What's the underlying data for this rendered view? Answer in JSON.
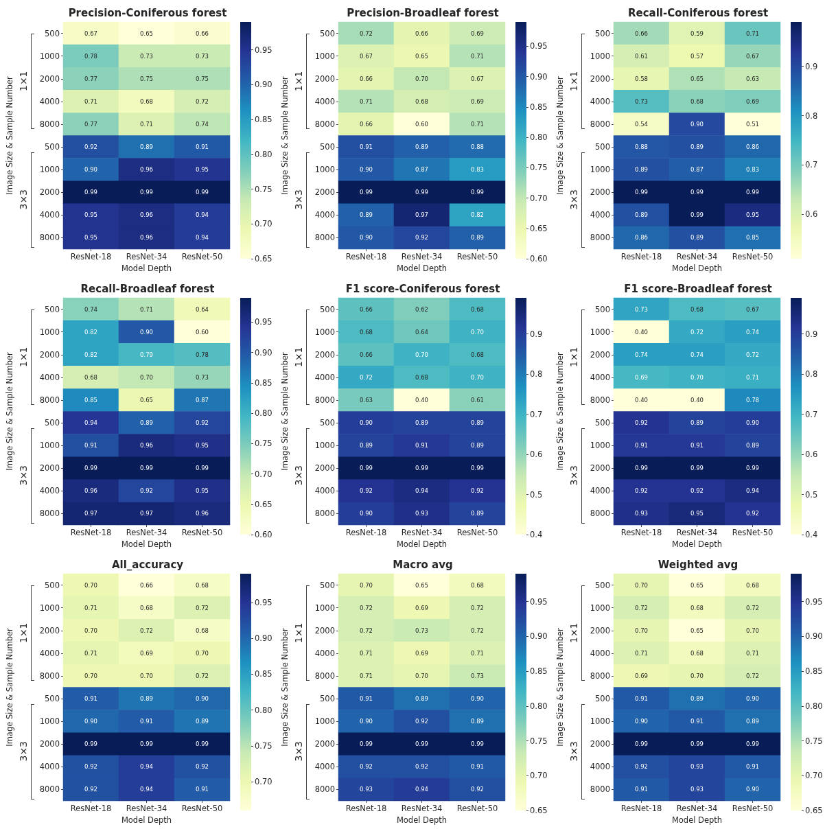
{
  "chart_data": [
    {
      "type": "heatmap",
      "title": "Precision-Coniferous forest",
      "xlabel": "Model Depth",
      "ylabel": "Image Size & Sample Number",
      "annotations": [
        "1×1",
        "3×3"
      ],
      "categories": [
        "ResNet-18",
        "ResNet-34",
        "ResNet-50"
      ],
      "y_categories": [
        "500",
        "1000",
        "2000",
        "4000",
        "8000",
        "500",
        "1000",
        "2000",
        "4000",
        "8000"
      ],
      "cells": [
        [
          0.67,
          0.65,
          0.66
        ],
        [
          0.78,
          0.73,
          0.73
        ],
        [
          0.77,
          0.75,
          0.75
        ],
        [
          0.71,
          0.68,
          0.72
        ],
        [
          0.77,
          0.71,
          0.74
        ],
        [
          0.92,
          0.89,
          0.91
        ],
        [
          0.9,
          0.96,
          0.95
        ],
        [
          0.99,
          0.99,
          0.99
        ],
        [
          0.95,
          0.96,
          0.94
        ],
        [
          0.95,
          0.96,
          0.94
        ]
      ],
      "cell_labels": [
        [
          "0.67",
          "0.65",
          "0.66"
        ],
        [
          "0.78",
          "0.73",
          "0.73"
        ],
        [
          "0.77",
          "0.75",
          "0.75"
        ],
        [
          "0.71",
          "0.68",
          "0.72"
        ],
        [
          "0.77",
          "0.71",
          "0.74"
        ],
        [
          "0.92",
          "0.89",
          "0.91"
        ],
        [
          "0.90",
          "0.96",
          "0.95"
        ],
        [
          "0.99",
          "0.99",
          "0.99"
        ],
        [
          "0.95",
          "0.96",
          "0.94"
        ],
        [
          "0.95",
          "0.96",
          "0.94"
        ]
      ],
      "clim": [
        0.65,
        0.99
      ],
      "cticks": [
        0.65,
        {
          "value": 0.7,
          "label": "0.70"
        },
        0.75,
        {
          "value": 0.8,
          "label": "0.80"
        },
        0.85,
        {
          "value": 0.9,
          "label": "0.90"
        },
        0.95
      ]
    },
    {
      "type": "heatmap",
      "title": "Precision-Broadleaf forest",
      "xlabel": "Model Depth",
      "ylabel": "Image Size & Sample Number",
      "annotations": [
        "1×1",
        "3×3"
      ],
      "categories": [
        "ResNet-18",
        "ResNet-34",
        "ResNet-50"
      ],
      "y_categories": [
        "500",
        "1000",
        "2000",
        "4000",
        "8000",
        "500",
        "1000",
        "2000",
        "4000",
        "8000"
      ],
      "cells": [
        [
          0.72,
          0.66,
          0.69
        ],
        [
          0.67,
          0.65,
          0.71
        ],
        [
          0.66,
          0.7,
          0.67
        ],
        [
          0.71,
          0.68,
          0.69
        ],
        [
          0.66,
          0.6,
          0.71
        ],
        [
          0.91,
          0.89,
          0.88
        ],
        [
          0.9,
          0.87,
          0.83
        ],
        [
          0.99,
          0.99,
          0.99
        ],
        [
          0.89,
          0.97,
          0.82
        ],
        [
          0.9,
          0.92,
          0.89
        ]
      ],
      "cell_labels": [
        [
          "0.72",
          "0.66",
          "0.69"
        ],
        [
          "0.67",
          "0.65",
          "0.71"
        ],
        [
          "0.66",
          "0.70",
          "0.67"
        ],
        [
          "0.71",
          "0.68",
          "0.69"
        ],
        [
          "0.66",
          "0.60",
          "0.71"
        ],
        [
          "0.91",
          "0.89",
          "0.88"
        ],
        [
          "0.90",
          "0.87",
          "0.83"
        ],
        [
          "0.99",
          "0.99",
          "0.99"
        ],
        [
          "0.89",
          "0.97",
          "0.82"
        ],
        [
          "0.90",
          "0.92",
          "0.89"
        ]
      ],
      "clim": [
        0.6,
        0.99
      ],
      "cticks": [
        {
          "value": 0.6,
          "label": "0.60"
        },
        0.65,
        {
          "value": 0.7,
          "label": "0.70"
        },
        0.75,
        {
          "value": 0.8,
          "label": "0.80"
        },
        0.85,
        {
          "value": 0.9,
          "label": "0.90"
        },
        0.95
      ]
    },
    {
      "type": "heatmap",
      "title": "Recall-Coniferous forest",
      "xlabel": "Model Depth",
      "ylabel": "Image Size & Sample Number",
      "annotations": [
        "1×1",
        "3×3"
      ],
      "categories": [
        "ResNet-18",
        "ResNet-34",
        "ResNet-50"
      ],
      "y_categories": [
        "500",
        "1000",
        "2000",
        "4000",
        "8000",
        "500",
        "1000",
        "2000",
        "4000",
        "8000"
      ],
      "cells": [
        [
          0.66,
          0.59,
          0.71
        ],
        [
          0.61,
          0.57,
          0.67
        ],
        [
          0.58,
          0.65,
          0.63
        ],
        [
          0.73,
          0.68,
          0.69
        ],
        [
          0.54,
          0.9,
          0.51
        ],
        [
          0.88,
          0.89,
          0.86
        ],
        [
          0.89,
          0.87,
          0.83
        ],
        [
          0.99,
          0.99,
          0.99
        ],
        [
          0.89,
          0.99,
          0.95
        ],
        [
          0.86,
          0.89,
          0.85
        ]
      ],
      "cell_labels": [
        [
          "0.66",
          "0.59",
          "0.71"
        ],
        [
          "0.61",
          "0.57",
          "0.67"
        ],
        [
          "0.58",
          "0.65",
          "0.63"
        ],
        [
          "0.73",
          "0.68",
          "0.69"
        ],
        [
          "0.54",
          "0.90",
          "0.51"
        ],
        [
          "0.88",
          "0.89",
          "0.86"
        ],
        [
          "0.89",
          "0.87",
          "0.83"
        ],
        [
          "0.99",
          "0.99",
          "0.99"
        ],
        [
          "0.89",
          "0.99",
          "0.95"
        ],
        [
          "0.86",
          "0.89",
          "0.85"
        ]
      ],
      "clim": [
        0.51,
        0.99
      ],
      "cticks": [
        0.6,
        0.7,
        0.8,
        0.9
      ]
    },
    {
      "type": "heatmap",
      "title": "Recall-Broadleaf forest",
      "xlabel": "Model Depth",
      "ylabel": "Image Size & Sample Number",
      "annotations": [
        "1×1",
        "3×3"
      ],
      "categories": [
        "ResNet-18",
        "ResNet-34",
        "ResNet-50"
      ],
      "y_categories": [
        "500",
        "1000",
        "2000",
        "4000",
        "8000",
        "500",
        "1000",
        "2000",
        "4000",
        "8000"
      ],
      "cells": [
        [
          0.74,
          0.71,
          0.64
        ],
        [
          0.82,
          0.9,
          0.6
        ],
        [
          0.82,
          0.79,
          0.78
        ],
        [
          0.68,
          0.7,
          0.73
        ],
        [
          0.85,
          0.65,
          0.87
        ],
        [
          0.94,
          0.89,
          0.92
        ],
        [
          0.91,
          0.96,
          0.95
        ],
        [
          0.99,
          0.99,
          0.99
        ],
        [
          0.96,
          0.92,
          0.95
        ],
        [
          0.97,
          0.97,
          0.96
        ]
      ],
      "cell_labels": [
        [
          "0.74",
          "0.71",
          "0.64"
        ],
        [
          "0.82",
          "0.90",
          "0.60"
        ],
        [
          "0.82",
          "0.79",
          "0.78"
        ],
        [
          "0.68",
          "0.70",
          "0.73"
        ],
        [
          "0.85",
          "0.65",
          "0.87"
        ],
        [
          "0.94",
          "0.89",
          "0.92"
        ],
        [
          "0.91",
          "0.96",
          "0.95"
        ],
        [
          "0.99",
          "0.99",
          "0.99"
        ],
        [
          "0.96",
          "0.92",
          "0.95"
        ],
        [
          "0.97",
          "0.97",
          "0.96"
        ]
      ],
      "clim": [
        0.6,
        0.99
      ],
      "cticks": [
        {
          "value": 0.6,
          "label": "0.60"
        },
        0.65,
        {
          "value": 0.7,
          "label": "0.70"
        },
        0.75,
        {
          "value": 0.8,
          "label": "0.80"
        },
        0.85,
        {
          "value": 0.9,
          "label": "0.90"
        },
        0.95
      ]
    },
    {
      "type": "heatmap",
      "title": "F1 score-Coniferous forest",
      "xlabel": "Model Depth",
      "ylabel": "Image Size & Sample Number",
      "annotations": [
        "1×1",
        "3×3"
      ],
      "categories": [
        "ResNet-18",
        "ResNet-34",
        "ResNet-50"
      ],
      "y_categories": [
        "500",
        "1000",
        "2000",
        "4000",
        "8000",
        "500",
        "1000",
        "2000",
        "4000",
        "8000"
      ],
      "cells": [
        [
          0.66,
          0.62,
          0.68
        ],
        [
          0.68,
          0.64,
          0.7
        ],
        [
          0.66,
          0.7,
          0.68
        ],
        [
          0.72,
          0.68,
          0.7
        ],
        [
          0.63,
          0.4,
          0.61
        ],
        [
          0.9,
          0.89,
          0.89
        ],
        [
          0.89,
          0.91,
          0.89
        ],
        [
          0.99,
          0.99,
          0.99
        ],
        [
          0.92,
          0.94,
          0.92
        ],
        [
          0.9,
          0.93,
          0.89
        ]
      ],
      "cell_labels": [
        [
          "0.66",
          "0.62",
          "0.68"
        ],
        [
          "0.68",
          "0.64",
          "0.70"
        ],
        [
          "0.66",
          "0.70",
          "0.68"
        ],
        [
          "0.72",
          "0.68",
          "0.70"
        ],
        [
          "0.63",
          "0.40",
          "0.61"
        ],
        [
          "0.90",
          "0.89",
          "0.89"
        ],
        [
          "0.89",
          "0.91",
          "0.89"
        ],
        [
          "0.99",
          "0.99",
          "0.99"
        ],
        [
          "0.92",
          "0.94",
          "0.92"
        ],
        [
          "0.90",
          "0.93",
          "0.89"
        ]
      ],
      "clim": [
        0.4,
        0.99
      ],
      "cticks": [
        0.4,
        0.5,
        0.6,
        0.7,
        0.8,
        0.9
      ]
    },
    {
      "type": "heatmap",
      "title": "F1 score-Broadleaf forest",
      "xlabel": "Model Depth",
      "ylabel": "Image Size & Sample Number",
      "annotations": [
        "1×1",
        "3×3"
      ],
      "categories": [
        "ResNet-18",
        "ResNet-34",
        "ResNet-50"
      ],
      "y_categories": [
        "500",
        "1000",
        "2000",
        "4000",
        "8000",
        "500",
        "1000",
        "2000",
        "4000",
        "8000"
      ],
      "cells": [
        [
          0.73,
          0.68,
          0.67
        ],
        [
          0.4,
          0.72,
          0.74
        ],
        [
          0.74,
          0.74,
          0.72
        ],
        [
          0.69,
          0.7,
          0.71
        ],
        [
          0.4,
          0.4,
          0.78
        ],
        [
          0.92,
          0.89,
          0.9
        ],
        [
          0.91,
          0.91,
          0.89
        ],
        [
          0.99,
          0.99,
          0.99
        ],
        [
          0.92,
          0.92,
          0.94
        ],
        [
          0.93,
          0.95,
          0.92
        ]
      ],
      "cell_labels": [
        [
          "0.73",
          "0.68",
          "0.67"
        ],
        [
          "0.40",
          "0.72",
          "0.74"
        ],
        [
          "0.74",
          "0.74",
          "0.72"
        ],
        [
          "0.69",
          "0.70",
          "0.71"
        ],
        [
          "0.40",
          "0.40",
          "0.78"
        ],
        [
          "0.92",
          "0.89",
          "0.90"
        ],
        [
          "0.91",
          "0.91",
          "0.89"
        ],
        [
          "0.99",
          "0.99",
          "0.99"
        ],
        [
          "0.92",
          "0.92",
          "0.94"
        ],
        [
          "0.93",
          "0.95",
          "0.92"
        ]
      ],
      "clim": [
        0.4,
        0.99
      ],
      "cticks": [
        0.4,
        0.5,
        0.6,
        0.7,
        0.8,
        0.9
      ]
    },
    {
      "type": "heatmap",
      "title": "All_accuracy",
      "xlabel": "Model Depth",
      "ylabel": "Image Size & Sample Number",
      "annotations": [
        "1×1",
        "3×3"
      ],
      "categories": [
        "ResNet-18",
        "ResNet-34",
        "ResNet-50"
      ],
      "y_categories": [
        "500",
        "1000",
        "2000",
        "4000",
        "8000",
        "500",
        "1000",
        "2000",
        "4000",
        "8000"
      ],
      "cells": [
        [
          0.7,
          0.66,
          0.68
        ],
        [
          0.71,
          0.68,
          0.72
        ],
        [
          0.7,
          0.72,
          0.68
        ],
        [
          0.71,
          0.69,
          0.7
        ],
        [
          0.7,
          0.7,
          0.72
        ],
        [
          0.91,
          0.89,
          0.9
        ],
        [
          0.9,
          0.91,
          0.89
        ],
        [
          0.99,
          0.99,
          0.99
        ],
        [
          0.92,
          0.94,
          0.92
        ],
        [
          0.92,
          0.94,
          0.91
        ]
      ],
      "cell_labels": [
        [
          "0.70",
          "0.66",
          "0.68"
        ],
        [
          "0.71",
          "0.68",
          "0.72"
        ],
        [
          "0.70",
          "0.72",
          "0.68"
        ],
        [
          "0.71",
          "0.69",
          "0.70"
        ],
        [
          "0.70",
          "0.70",
          "0.72"
        ],
        [
          "0.91",
          "0.89",
          "0.90"
        ],
        [
          "0.90",
          "0.91",
          "0.89"
        ],
        [
          "0.99",
          "0.99",
          "0.99"
        ],
        [
          "0.92",
          "0.94",
          "0.92"
        ],
        [
          "0.92",
          "0.94",
          "0.91"
        ]
      ],
      "clim": [
        0.66,
        0.99
      ],
      "cticks": [
        {
          "value": 0.7,
          "label": "0.70"
        },
        0.75,
        {
          "value": 0.8,
          "label": "0.80"
        },
        0.85,
        {
          "value": 0.9,
          "label": "0.90"
        },
        0.95
      ]
    },
    {
      "type": "heatmap",
      "title": "Macro avg",
      "xlabel": "Model Depth",
      "ylabel": "Image Size & Sample Number",
      "annotations": [
        "1×1",
        "3×3"
      ],
      "categories": [
        "ResNet-18",
        "ResNet-34",
        "ResNet-50"
      ],
      "y_categories": [
        "500",
        "1000",
        "2000",
        "4000",
        "8000",
        "500",
        "1000",
        "2000",
        "4000",
        "8000"
      ],
      "cells": [
        [
          0.7,
          0.65,
          0.68
        ],
        [
          0.72,
          0.69,
          0.72
        ],
        [
          0.72,
          0.73,
          0.72
        ],
        [
          0.71,
          0.69,
          0.71
        ],
        [
          0.71,
          0.7,
          0.73
        ],
        [
          0.91,
          0.89,
          0.9
        ],
        [
          0.9,
          0.92,
          0.89
        ],
        [
          0.99,
          0.99,
          0.99
        ],
        [
          0.92,
          0.92,
          0.91
        ],
        [
          0.93,
          0.94,
          0.92
        ]
      ],
      "cell_labels": [
        [
          "0.70",
          "0.65",
          "0.68"
        ],
        [
          "0.72",
          "0.69",
          "0.72"
        ],
        [
          "0.72",
          "0.73",
          "0.72"
        ],
        [
          "0.71",
          "0.69",
          "0.71"
        ],
        [
          "0.71",
          "0.70",
          "0.73"
        ],
        [
          "0.91",
          "0.89",
          "0.90"
        ],
        [
          "0.90",
          "0.92",
          "0.89"
        ],
        [
          "0.99",
          "0.99",
          "0.99"
        ],
        [
          "0.92",
          "0.92",
          "0.91"
        ],
        [
          "0.93",
          "0.94",
          "0.92"
        ]
      ],
      "clim": [
        0.65,
        0.99
      ],
      "cticks": [
        0.65,
        {
          "value": 0.7,
          "label": "0.70"
        },
        0.75,
        {
          "value": 0.8,
          "label": "0.80"
        },
        0.85,
        {
          "value": 0.9,
          "label": "0.90"
        },
        0.95
      ]
    },
    {
      "type": "heatmap",
      "title": "Weighted avg",
      "xlabel": "Model Depth",
      "ylabel": "Image Size & Sample Number",
      "annotations": [
        "1×1",
        "3×3"
      ],
      "categories": [
        "ResNet-18",
        "ResNet-34",
        "ResNet-50"
      ],
      "y_categories": [
        "500",
        "1000",
        "2000",
        "4000",
        "8000",
        "500",
        "1000",
        "2000",
        "4000",
        "8000"
      ],
      "cells": [
        [
          0.7,
          0.65,
          0.68
        ],
        [
          0.72,
          0.68,
          0.72
        ],
        [
          0.7,
          0.65,
          0.7
        ],
        [
          0.71,
          0.68,
          0.71
        ],
        [
          0.69,
          0.7,
          0.72
        ],
        [
          0.91,
          0.89,
          0.9
        ],
        [
          0.9,
          0.91,
          0.89
        ],
        [
          0.99,
          0.99,
          0.99
        ],
        [
          0.92,
          0.93,
          0.91
        ],
        [
          0.91,
          0.93,
          0.9
        ]
      ],
      "cell_labels": [
        [
          "0.70",
          "0.65",
          "0.68"
        ],
        [
          "0.72",
          "0.68",
          "0.72"
        ],
        [
          "0.70",
          "0.65",
          "0.70"
        ],
        [
          "0.71",
          "0.68",
          "0.71"
        ],
        [
          "0.69",
          "0.70",
          "0.72"
        ],
        [
          "0.91",
          "0.89",
          "0.90"
        ],
        [
          "0.90",
          "0.91",
          "0.89"
        ],
        [
          "0.99",
          "0.99",
          "0.99"
        ],
        [
          "0.92",
          "0.93",
          "0.91"
        ],
        [
          "0.91",
          "0.93",
          "0.90"
        ]
      ],
      "clim": [
        0.65,
        0.99
      ],
      "cticks": [
        0.65,
        {
          "value": 0.7,
          "label": "0.70"
        },
        0.75,
        {
          "value": 0.8,
          "label": "0.80"
        },
        0.85,
        {
          "value": 0.9,
          "label": "0.90"
        },
        0.95
      ]
    }
  ]
}
